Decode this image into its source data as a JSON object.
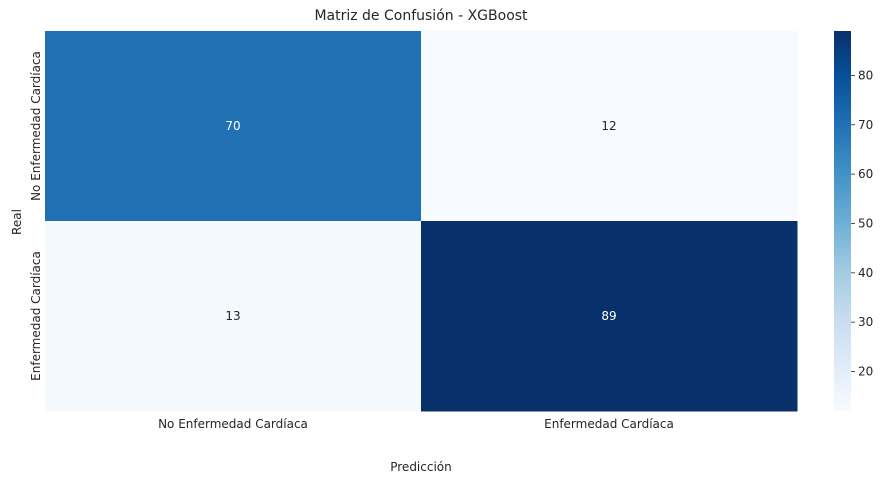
{
  "chart_data": {
    "type": "heatmap",
    "title": "Matriz de Confusión - XGBoost",
    "xlabel": "Predicción",
    "ylabel": "Real",
    "x_categories": [
      "No Enfermedad Cardíaca",
      "Enfermedad Cardíaca"
    ],
    "y_categories": [
      "No Enfermedad Cardíaca",
      "Enfermedad Cardíaca"
    ],
    "values": [
      [
        70,
        12
      ],
      [
        13,
        89
      ]
    ],
    "colormap": "Blues",
    "colorbar": {
      "min": 12,
      "max": 89,
      "ticks": [
        20,
        30,
        40,
        50,
        60,
        70,
        80
      ]
    },
    "annotation_colors": {
      "light_cells": "#262626",
      "dark_cells": "#ffffff"
    }
  }
}
